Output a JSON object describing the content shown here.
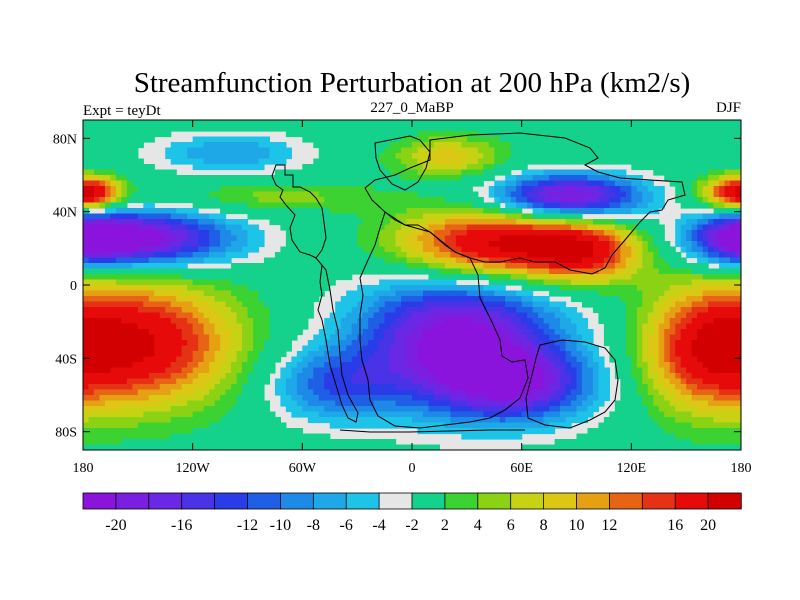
{
  "chart_data": {
    "type": "heatmap",
    "title": "Streamfunction Perturbation at 200 hPa (km2/s)",
    "left_label": "Expt = teyDt",
    "center_label": "227_0_MaBP",
    "right_label": "DJF",
    "x_ticks": [
      {
        "value": -180,
        "label": "180"
      },
      {
        "value": -120,
        "label": "120W"
      },
      {
        "value": -60,
        "label": "60W"
      },
      {
        "value": 0,
        "label": "0"
      },
      {
        "value": 60,
        "label": "60E"
      },
      {
        "value": 120,
        "label": "120E"
      },
      {
        "value": 180,
        "label": "180"
      }
    ],
    "y_ticks": [
      {
        "value": 80,
        "label": "80N"
      },
      {
        "value": 40,
        "label": "40N"
      },
      {
        "value": 0,
        "label": "0"
      },
      {
        "value": -40,
        "label": "40S"
      },
      {
        "value": -80,
        "label": "80S"
      }
    ],
    "xlim": [
      -180,
      180
    ],
    "ylim": [
      -90,
      90
    ],
    "colorbar": {
      "levels": [
        -20,
        -18,
        -16,
        -14,
        -12,
        -10,
        -8,
        -6,
        -4,
        -2,
        2,
        4,
        6,
        8,
        10,
        12,
        14,
        16,
        20
      ],
      "labels": [
        "-20",
        "-16",
        "-12",
        "-10",
        "-8",
        "-6",
        "-4",
        "-2",
        "2",
        "4",
        "6",
        "8",
        "10",
        "12",
        "16",
        "20"
      ],
      "colors": [
        "#8a14dc",
        "#7a1ee0",
        "#6a28e6",
        "#4a32e6",
        "#2a3ce8",
        "#1e5fe6",
        "#1e8ae8",
        "#1ea8e8",
        "#1ec3e8",
        "#e6e6e6",
        "#14d28c",
        "#3cd232",
        "#8cd214",
        "#c8d214",
        "#dcc814",
        "#e6a014",
        "#e66414",
        "#e63214",
        "#e60a0a",
        "#d20000"
      ]
    },
    "field_centers": [
      {
        "lon": 45,
        "lat": 22,
        "value": 22,
        "sx": 38,
        "sy": 14
      },
      {
        "lon": 95,
        "lat": 18,
        "value": 14,
        "sx": 22,
        "sy": 12
      },
      {
        "lon": 25,
        "lat": -30,
        "value": -22,
        "sx": 40,
        "sy": 26
      },
      {
        "lon": 60,
        "lat": -55,
        "value": -14,
        "sx": 30,
        "sy": 14
      },
      {
        "lon": -45,
        "lat": -55,
        "value": -10,
        "sx": 25,
        "sy": 14
      },
      {
        "lon": -150,
        "lat": 25,
        "value": -22,
        "sx": 38,
        "sy": 11
      },
      {
        "lon": 180,
        "lat": 25,
        "value": -12,
        "sx": 18,
        "sy": 10
      },
      {
        "lon": -150,
        "lat": -32,
        "value": 20,
        "sx": 38,
        "sy": 24
      },
      {
        "lon": 160,
        "lat": -35,
        "value": 14,
        "sx": 25,
        "sy": 24
      },
      {
        "lon": 85,
        "lat": 48,
        "value": -22,
        "sx": 30,
        "sy": 9
      },
      {
        "lon": 20,
        "lat": 70,
        "value": 9,
        "sx": 22,
        "sy": 8
      },
      {
        "lon": -100,
        "lat": 72,
        "value": -8,
        "sx": 30,
        "sy": 8
      },
      {
        "lon": -175,
        "lat": 50,
        "value": 13,
        "sx": 12,
        "sy": 6
      },
      {
        "lon": 175,
        "lat": 50,
        "value": 12,
        "sx": 15,
        "sy": 7
      },
      {
        "lon": -75,
        "lat": 48,
        "value": 5,
        "sx": 40,
        "sy": 6
      }
    ]
  }
}
